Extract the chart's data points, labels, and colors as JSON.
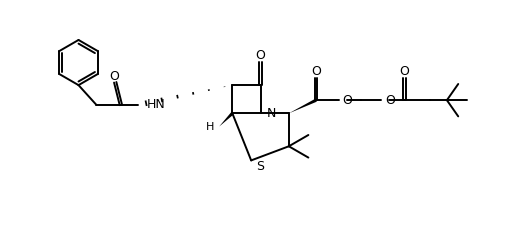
{
  "background_color": "#ffffff",
  "line_color": "#000000",
  "lw": 1.4,
  "figsize": [
    5.24,
    2.38
  ],
  "dpi": 100,
  "xlim": [
    0,
    10.5
  ],
  "ylim": [
    -0.5,
    4.5
  ]
}
